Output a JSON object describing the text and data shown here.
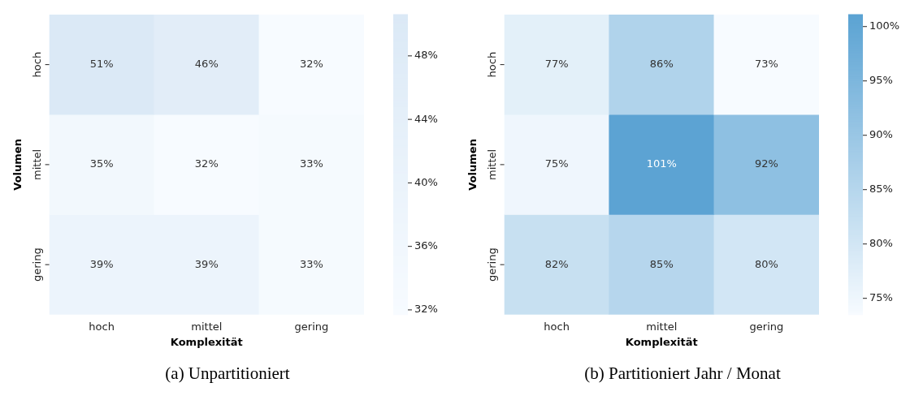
{
  "chart_data": [
    {
      "type": "heatmap",
      "title": "(a) Unpartitioniert",
      "xlabel": "Komplexität",
      "ylabel": "Volumen",
      "color": "#dbe9f6",
      "categories": [
        "hoch",
        "mittel",
        "gering"
      ],
      "y_categories": [
        "hoch",
        "mittel",
        "gering"
      ],
      "cells": [
        [
          51,
          46,
          32
        ],
        [
          35,
          32,
          33
        ],
        [
          39,
          39,
          33
        ]
      ],
      "cell_labels": [
        [
          "51%",
          "46%",
          "32%"
        ],
        [
          "35%",
          "32%",
          "33%"
        ],
        [
          "39%",
          "39%",
          "33%"
        ]
      ],
      "clim": [
        31.7,
        50.6
      ],
      "cticks": [
        {
          "value": 32,
          "label": "32%"
        },
        {
          "value": 36,
          "label": "36%"
        },
        {
          "value": 40,
          "label": "40%"
        },
        {
          "value": 44,
          "label": "44%"
        },
        {
          "value": 48,
          "label": "48%"
        }
      ]
    },
    {
      "type": "heatmap",
      "title": "(b) Partitioniert Jahr / Monat",
      "xlabel": "Komplexität",
      "ylabel": "Volumen",
      "color": "#5ba3d3",
      "categories": [
        "hoch",
        "mittel",
        "gering"
      ],
      "y_categories": [
        "hoch",
        "mittel",
        "gering"
      ],
      "cells": [
        [
          77,
          86,
          73
        ],
        [
          75,
          101,
          92
        ],
        [
          82,
          85,
          80
        ]
      ],
      "cell_labels": [
        [
          "77%",
          "86%",
          "73%"
        ],
        [
          "75%",
          "101%",
          "92%"
        ],
        [
          "82%",
          "85%",
          "80%"
        ]
      ],
      "clim": [
        73.5,
        101.1
      ],
      "cticks": [
        {
          "value": 75,
          "label": "75%"
        },
        {
          "value": 80,
          "label": "80%"
        },
        {
          "value": 85,
          "label": "85%"
        },
        {
          "value": 90,
          "label": "90%"
        },
        {
          "value": 95,
          "label": "95%"
        },
        {
          "value": 100,
          "label": "100%"
        }
      ]
    }
  ]
}
